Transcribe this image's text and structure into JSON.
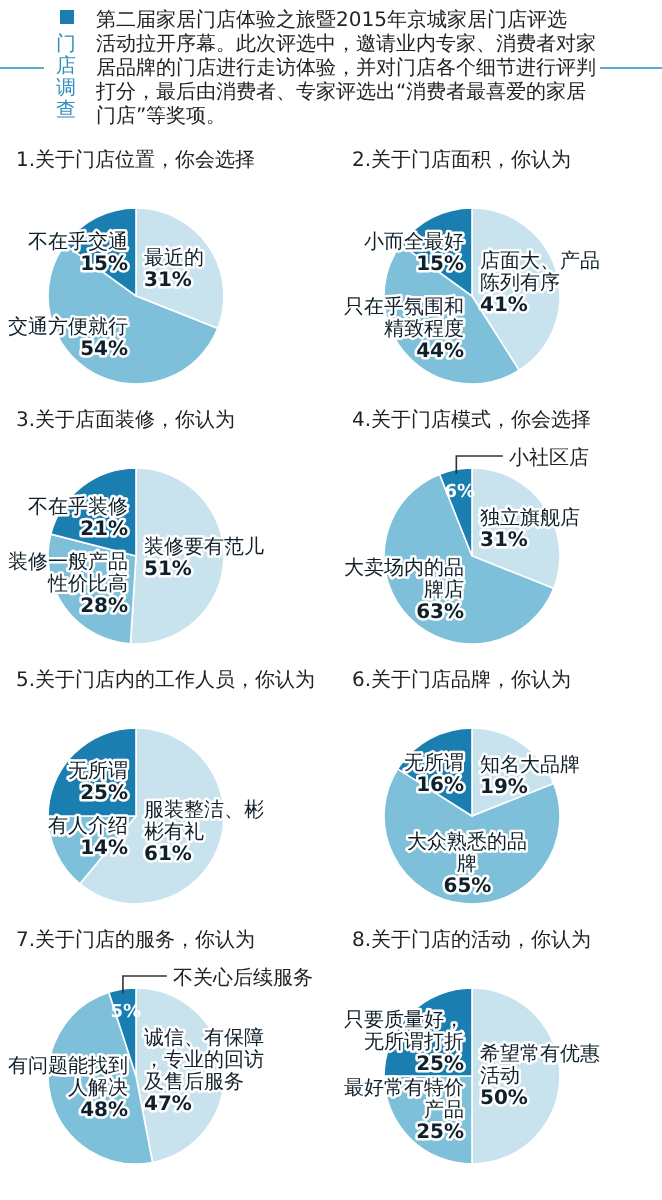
{
  "chart_data": [
    {
      "type": "other",
      "title": "门店调查",
      "annotations": [
        "第二届家居门店体验之旅暨2015年京城家居门店评选活动拉开序幕。此次评选中，邀请业内专家、消费者对家居品牌的门店进行走访体验，并对门店各个细节进行评判打分，最后由消费者、专家评选出“消费者最喜爱的家居门店”等奖项。"
      ]
    },
    {
      "type": "pie",
      "title": "1.关于门店位置，你会选择",
      "categories": [
        "最近的",
        "交通方便就行",
        "不在乎交通"
      ],
      "values": [
        31,
        54,
        15
      ],
      "value_labels": [
        "31%",
        "54%",
        "15%"
      ],
      "colors": [
        "#c9e3ee",
        "#7ec0d9",
        "#1a7fb0"
      ]
    },
    {
      "type": "pie",
      "title": "2.关于门店面积，你认为",
      "categories": [
        "店面大、产品陈列有序",
        "只在乎氛围和精致程度",
        "小而全最好"
      ],
      "values": [
        41,
        44,
        15
      ],
      "value_labels": [
        "41%",
        "44%",
        "15%"
      ],
      "colors": [
        "#c9e3ee",
        "#7ec0d9",
        "#1a7fb0"
      ]
    },
    {
      "type": "pie",
      "title": "3.关于店面装修，你认为",
      "categories": [
        "装修要有范儿",
        "装修一般产品性价比高",
        "不在乎装修"
      ],
      "values": [
        51,
        28,
        21
      ],
      "value_labels": [
        "51%",
        "28%",
        "21%"
      ],
      "colors": [
        "#c9e3ee",
        "#7ec0d9",
        "#1a7fb0"
      ]
    },
    {
      "type": "pie",
      "title": "4.关于门店模式，你会选择",
      "categories": [
        "独立旗舰店",
        "大卖场内的品牌店",
        "小社区店"
      ],
      "values": [
        31,
        63,
        6
      ],
      "value_labels": [
        "31%",
        "63%",
        "6%"
      ],
      "colors": [
        "#c9e3ee",
        "#7ec0d9",
        "#1a7fb0"
      ]
    },
    {
      "type": "pie",
      "title": "5.关于门店内的工作人员，你认为",
      "categories": [
        "服装整洁、彬彬有礼",
        "有人介绍",
        "无所谓"
      ],
      "values": [
        61,
        14,
        25
      ],
      "value_labels": [
        "61%",
        "14%",
        "25%"
      ],
      "colors": [
        "#c9e3ee",
        "#7ec0d9",
        "#1a7fb0"
      ]
    },
    {
      "type": "pie",
      "title": "6.关于门店品牌，你认为",
      "categories": [
        "知名大品牌",
        "大众熟悉的品牌",
        "无所谓"
      ],
      "values": [
        19,
        65,
        16
      ],
      "value_labels": [
        "19%",
        "65%",
        "16%"
      ],
      "colors": [
        "#c9e3ee",
        "#7ec0d9",
        "#1a7fb0"
      ]
    },
    {
      "type": "pie",
      "title": "7.关于门店的服务，你认为",
      "categories": [
        "诚信、有保障，专业的回访及售后服务",
        "有问题能找到人解决",
        "不关心后续服务"
      ],
      "values": [
        47,
        48,
        5
      ],
      "value_labels": [
        "47%",
        "48%",
        "5%"
      ],
      "colors": [
        "#c9e3ee",
        "#7ec0d9",
        "#1a7fb0"
      ]
    },
    {
      "type": "pie",
      "title": "8.关于门店的活动，你认为",
      "categories": [
        "希望常有优惠活动",
        "最好常有特价产品",
        "只要质量好，无所谓打折"
      ],
      "values": [
        50,
        25,
        25
      ],
      "value_labels": [
        "50%",
        "25%",
        "25%"
      ],
      "colors": [
        "#c9e3ee",
        "#7ec0d9",
        "#1a7fb0"
      ]
    }
  ]
}
